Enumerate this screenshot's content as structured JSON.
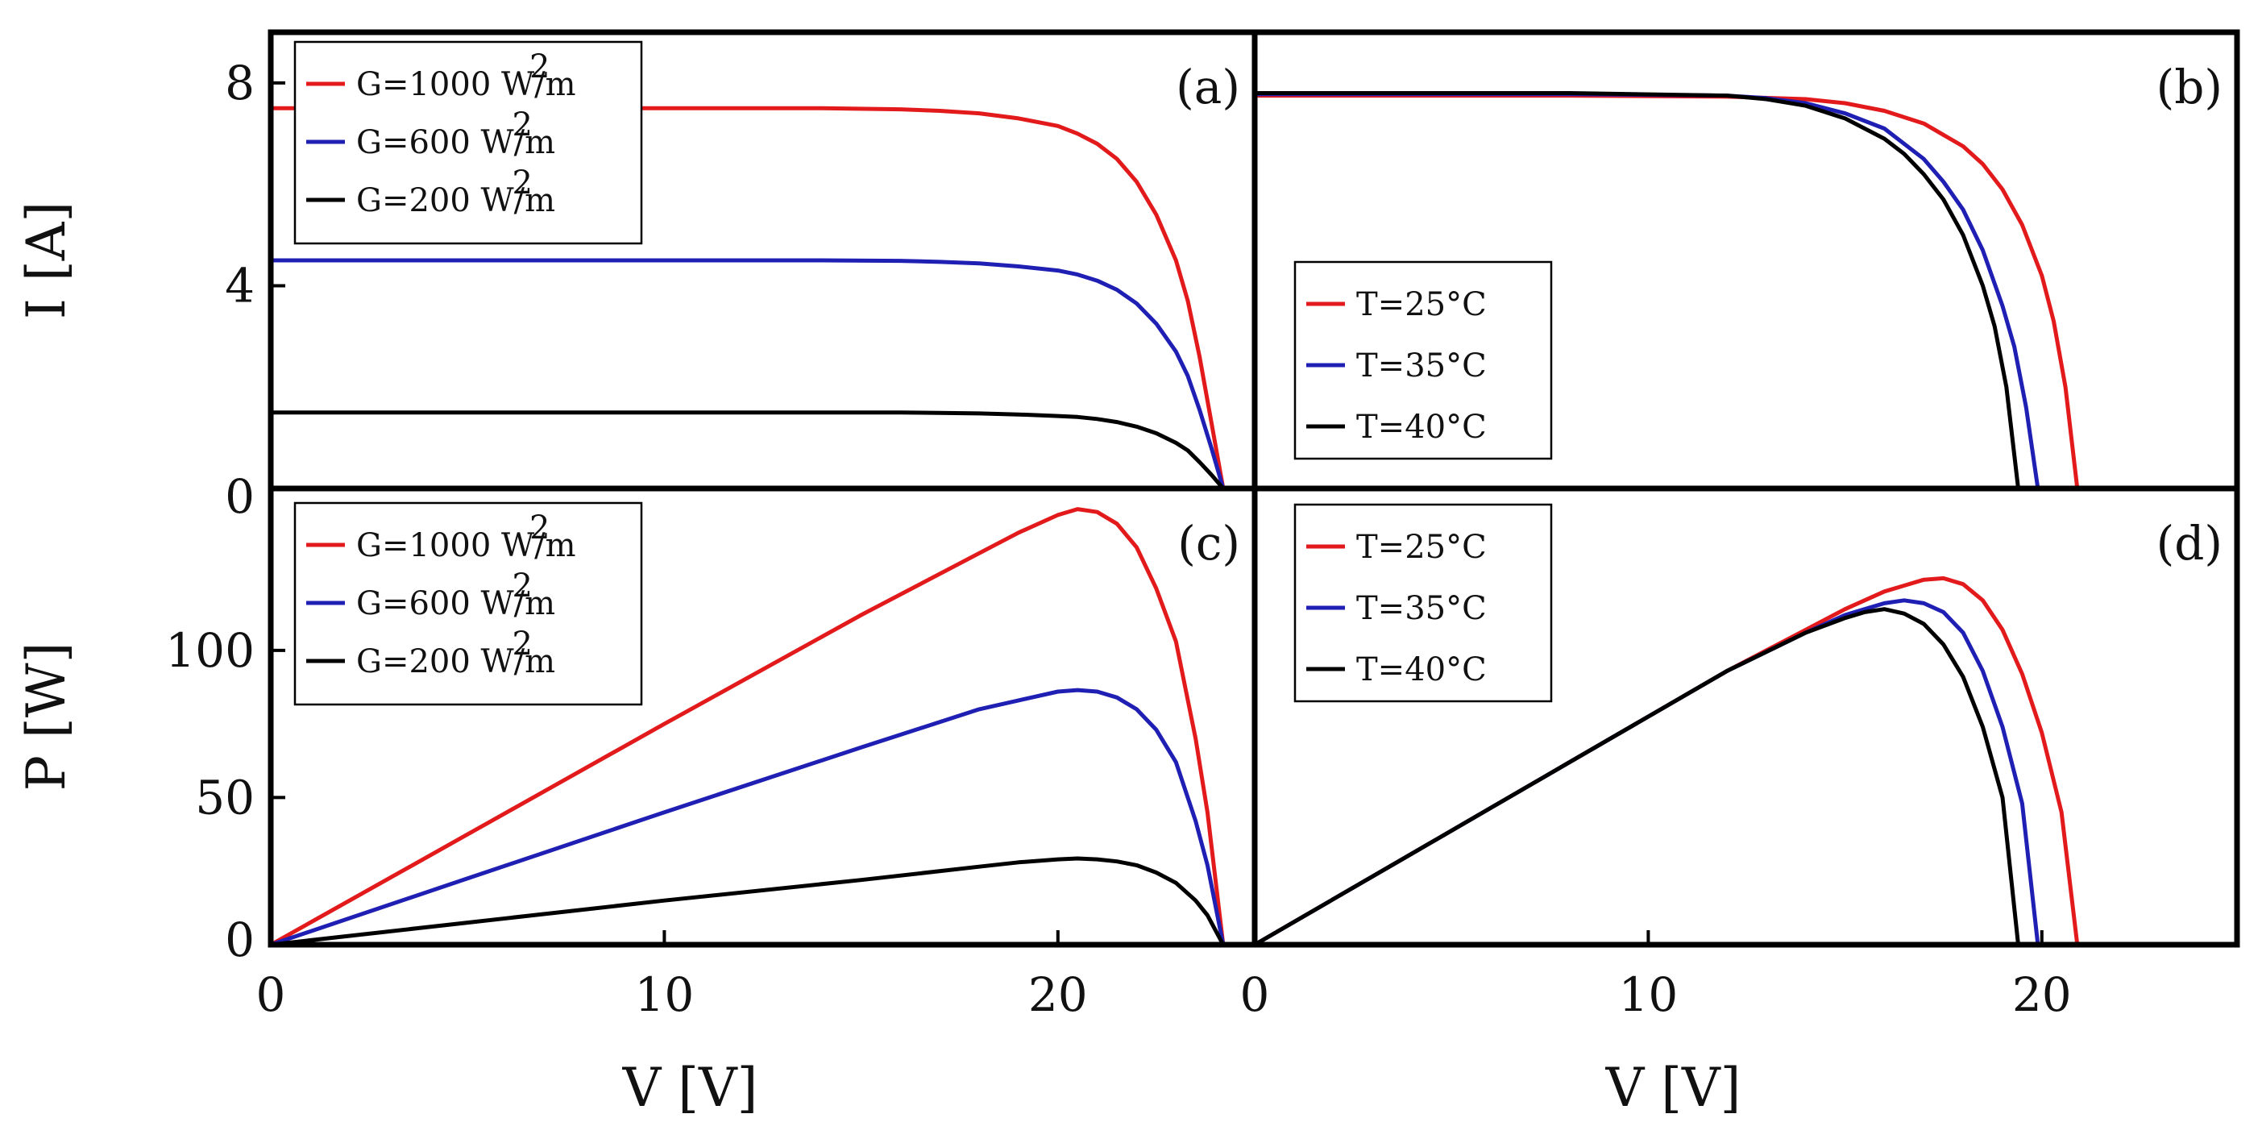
{
  "chart_data": [
    {
      "id": "a",
      "panel_label": "(a)",
      "type": "line",
      "xlabel": "V [V]",
      "ylabel": "I [A]",
      "xlim": [
        0,
        25
      ],
      "ylim": [
        0,
        9
      ],
      "xticks": [
        "0",
        "10",
        "20"
      ],
      "yticks": [
        "0",
        "4",
        "8"
      ],
      "legend_position": "top-left",
      "series": [
        {
          "name": "G=1000 W/m2",
          "label_main": "G=1000 W/m",
          "label_sup": "2",
          "color": "#e31a1c",
          "x": [
            0,
            2,
            4,
            6,
            8,
            10,
            12,
            14,
            16,
            17,
            18,
            19,
            20,
            20.5,
            21,
            21.5,
            22,
            22.5,
            23,
            23.3,
            23.6,
            23.9,
            24.2
          ],
          "y": [
            7.5,
            7.5,
            7.5,
            7.5,
            7.5,
            7.5,
            7.5,
            7.5,
            7.48,
            7.45,
            7.4,
            7.3,
            7.15,
            7.0,
            6.8,
            6.5,
            6.05,
            5.4,
            4.5,
            3.7,
            2.6,
            1.3,
            0
          ]
        },
        {
          "name": "G=600 W/m2",
          "label_main": "G=600 W/m",
          "label_sup": "2",
          "color": "#1f1fb4",
          "x": [
            0,
            2,
            4,
            6,
            8,
            10,
            12,
            14,
            16,
            17,
            18,
            19,
            20,
            20.5,
            21,
            21.5,
            22,
            22.5,
            23,
            23.3,
            23.6,
            23.9,
            24.2
          ],
          "y": [
            4.5,
            4.5,
            4.5,
            4.5,
            4.5,
            4.5,
            4.5,
            4.5,
            4.49,
            4.47,
            4.44,
            4.38,
            4.3,
            4.22,
            4.1,
            3.92,
            3.65,
            3.25,
            2.7,
            2.22,
            1.55,
            0.8,
            0
          ]
        },
        {
          "name": "G=200 W/m2",
          "label_main": "G=200 W/m",
          "label_sup": "2",
          "color": "#000000",
          "x": [
            0,
            2,
            4,
            6,
            8,
            10,
            12,
            14,
            16,
            17,
            18,
            19,
            20,
            20.5,
            21,
            21.5,
            22,
            22.5,
            23,
            23.3,
            23.6,
            23.9,
            24.2
          ],
          "y": [
            1.5,
            1.5,
            1.5,
            1.5,
            1.5,
            1.5,
            1.5,
            1.5,
            1.5,
            1.49,
            1.48,
            1.46,
            1.43,
            1.41,
            1.37,
            1.31,
            1.22,
            1.09,
            0.9,
            0.75,
            0.52,
            0.27,
            0
          ]
        }
      ]
    },
    {
      "id": "b",
      "panel_label": "(b)",
      "type": "line",
      "xlabel": "",
      "ylabel": "",
      "xlim": [
        0,
        25
      ],
      "ylim": [
        0,
        9
      ],
      "legend_position": "lower-left",
      "series": [
        {
          "name": "T=25°C",
          "label_main": "T=25°C",
          "label_sup": "",
          "color": "#e31a1c",
          "x": [
            0,
            4,
            8,
            12,
            14,
            15,
            16,
            17,
            18,
            18.5,
            19,
            19.5,
            20,
            20.3,
            20.6,
            20.9
          ],
          "y": [
            7.75,
            7.75,
            7.75,
            7.73,
            7.68,
            7.6,
            7.45,
            7.2,
            6.75,
            6.4,
            5.9,
            5.2,
            4.2,
            3.3,
            2.0,
            0
          ]
        },
        {
          "name": "T=35°C",
          "label_main": "T=35°C",
          "label_sup": "",
          "color": "#1f1fb4",
          "x": [
            0,
            4,
            8,
            12,
            13,
            14,
            15,
            16,
            17,
            17.5,
            18,
            18.5,
            19,
            19.3,
            19.6,
            19.9
          ],
          "y": [
            7.78,
            7.78,
            7.78,
            7.75,
            7.7,
            7.6,
            7.4,
            7.1,
            6.5,
            6.05,
            5.5,
            4.7,
            3.6,
            2.8,
            1.6,
            0
          ]
        },
        {
          "name": "T=40°C",
          "label_main": "T=40°C",
          "label_sup": "",
          "color": "#000000",
          "x": [
            0,
            4,
            8,
            12,
            13,
            14,
            15,
            16,
            16.5,
            17,
            17.5,
            18,
            18.5,
            18.8,
            19.1,
            19.4
          ],
          "y": [
            7.8,
            7.8,
            7.8,
            7.75,
            7.68,
            7.55,
            7.3,
            6.9,
            6.6,
            6.2,
            5.7,
            5.0,
            4.0,
            3.2,
            2.0,
            0
          ]
        }
      ]
    },
    {
      "id": "c",
      "panel_label": "(c)",
      "type": "line",
      "xlabel": "V [V]",
      "ylabel": "P [W]",
      "xlim": [
        0,
        25
      ],
      "ylim": [
        0,
        155
      ],
      "xticks": [
        "0",
        "10",
        "20"
      ],
      "yticks": [
        "0",
        "50",
        "100"
      ],
      "legend_position": "top-left",
      "series": [
        {
          "name": "G=1000 W/m2",
          "label_main": "G=1000 W/m",
          "label_sup": "2",
          "color": "#e31a1c",
          "x": [
            0,
            5,
            10,
            15,
            18,
            19,
            20,
            20.5,
            21,
            21.5,
            22,
            22.5,
            23,
            23.5,
            23.8,
            24.2
          ],
          "y": [
            0,
            37.5,
            75,
            112,
            133,
            140,
            146,
            148,
            147,
            143,
            135,
            121,
            103,
            70,
            45,
            0
          ]
        },
        {
          "name": "G=600 W/m2",
          "label_main": "G=600 W/m",
          "label_sup": "2",
          "color": "#1f1fb4",
          "x": [
            0,
            5,
            10,
            15,
            18,
            19,
            20,
            20.5,
            21,
            21.5,
            22,
            22.5,
            23,
            23.5,
            23.8,
            24.2
          ],
          "y": [
            0,
            22.5,
            45,
            67,
            80,
            83,
            86,
            86.5,
            86,
            84,
            80,
            73,
            62,
            42,
            27,
            0
          ]
        },
        {
          "name": "G=200 W/m2",
          "label_main": "G=200 W/m",
          "label_sup": "2",
          "color": "#000000",
          "x": [
            0,
            5,
            10,
            15,
            18,
            19,
            20,
            20.5,
            21,
            21.5,
            22,
            22.5,
            23,
            23.5,
            23.8,
            24.2
          ],
          "y": [
            0,
            7.5,
            15,
            22,
            26.5,
            28,
            29,
            29.3,
            29,
            28.3,
            27,
            24.5,
            21,
            15,
            10,
            0
          ]
        }
      ]
    },
    {
      "id": "d",
      "panel_label": "(d)",
      "type": "line",
      "xlabel": "V [V]",
      "ylabel": "",
      "xlim": [
        0,
        25
      ],
      "ylim": [
        0,
        155
      ],
      "xticks": [
        "0",
        "10",
        "20"
      ],
      "legend_position": "top-left",
      "series": [
        {
          "name": "T=25°C",
          "label_main": "T=25°C",
          "label_sup": "",
          "color": "#e31a1c",
          "x": [
            0,
            4,
            8,
            12,
            14,
            15,
            16,
            16.5,
            17,
            17.5,
            18,
            18.5,
            19,
            19.5,
            20,
            20.5,
            20.9
          ],
          "y": [
            0,
            31,
            62,
            93,
            107,
            114,
            120,
            122,
            124,
            124.5,
            122.5,
            117,
            107,
            92,
            72,
            45,
            0
          ]
        },
        {
          "name": "T=35°C",
          "label_main": "T=35°C",
          "label_sup": "",
          "color": "#1f1fb4",
          "x": [
            0,
            4,
            8,
            12,
            14,
            15,
            15.5,
            16,
            16.5,
            17,
            17.5,
            18,
            18.5,
            19,
            19.5,
            19.9
          ],
          "y": [
            0,
            31,
            62,
            93,
            106,
            112,
            114,
            116,
            117,
            116,
            113,
            106,
            93,
            74,
            48,
            0
          ]
        },
        {
          "name": "T=40°C",
          "label_main": "T=40°C",
          "label_sup": "",
          "color": "#000000",
          "x": [
            0,
            4,
            8,
            12,
            14,
            15,
            15.5,
            16,
            16.5,
            17,
            17.5,
            18,
            18.5,
            19,
            19.4
          ],
          "y": [
            0,
            31,
            62,
            93,
            106,
            111,
            113,
            114,
            112.5,
            109,
            102,
            91,
            74,
            50,
            0
          ]
        }
      ]
    }
  ]
}
